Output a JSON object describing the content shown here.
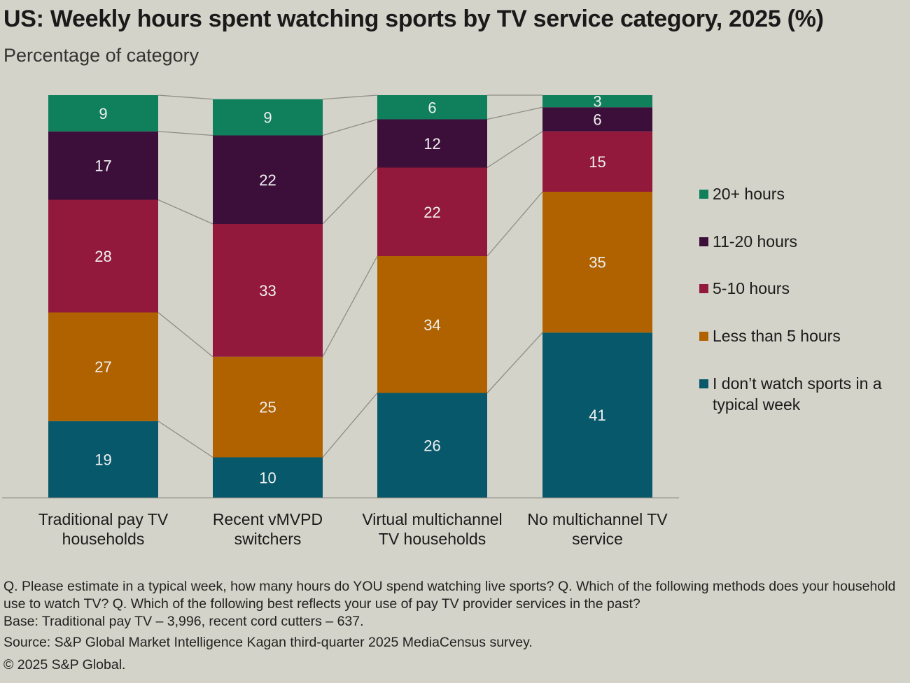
{
  "title": "US: Weekly hours spent watching sports by TV service category, 2025 (%)",
  "subtitle": "Percentage of category",
  "chart_data": {
    "type": "bar",
    "stacked": true,
    "ylim": [
      0,
      100
    ],
    "categories": [
      [
        "Traditional pay TV",
        "households"
      ],
      [
        "Recent vMVPD",
        "switchers"
      ],
      [
        "Virtual multichannel",
        "TV households"
      ],
      [
        "No multichannel TV",
        "service"
      ]
    ],
    "series": [
      {
        "name": "I don’t watch sports in a typical week",
        "legend_lines": [
          "I don’t watch sports in a",
          "typical week"
        ],
        "color": "#07586a",
        "values": [
          19,
          10,
          26,
          41
        ]
      },
      {
        "name": "Less than 5 hours",
        "legend_lines": [
          "Less than 5 hours"
        ],
        "color": "#b06200",
        "values": [
          27,
          25,
          34,
          35
        ]
      },
      {
        "name": "5-10 hours",
        "legend_lines": [
          "5-10 hours"
        ],
        "color": "#92193b",
        "values": [
          28,
          33,
          22,
          15
        ]
      },
      {
        "name": "11-20 hours",
        "legend_lines": [
          "11-20 hours"
        ],
        "color": "#3c0f3a",
        "values": [
          17,
          22,
          12,
          6
        ]
      },
      {
        "name": "20+ hours",
        "legend_lines": [
          "20+ hours"
        ],
        "color": "#0f7f5c",
        "values": [
          9,
          9,
          6,
          3
        ]
      }
    ],
    "legend_order": [
      4,
      3,
      2,
      1,
      0
    ],
    "label_color": "#f0f0f0",
    "connector_color": "#8e8e86"
  },
  "footnotes": {
    "question": "Q. Please estimate in a typical week, how many hours do YOU spend watching live sports? Q. Which of the following methods does your household use to watch TV? Q. Which of the following best reflects your use of pay TV provider services in the past?",
    "base": "Base: Traditional pay TV – 3,996, recent cord cutters – 637.",
    "source": "Source: S&P Global Market Intelligence Kagan third-quarter 2025 MediaCensus survey.",
    "copyright": "© 2025 S&P Global."
  }
}
